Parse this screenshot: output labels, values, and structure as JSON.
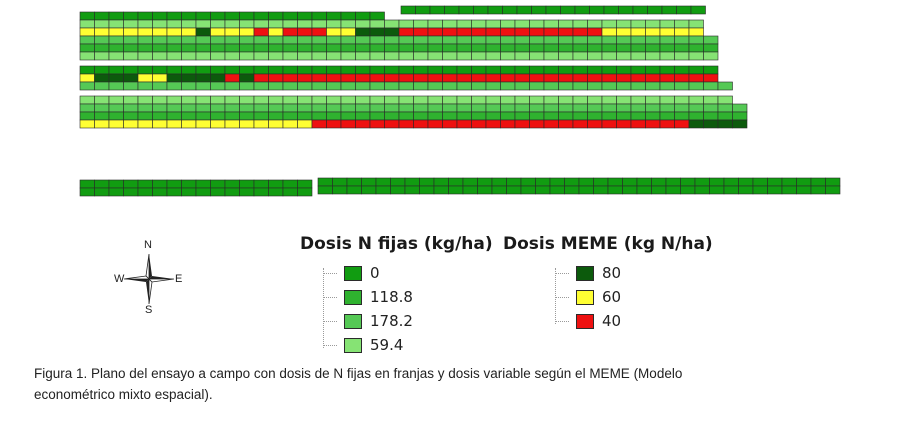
{
  "map": {
    "colors": {
      "n_0": "#119c11",
      "n_118_8": "#2fb22f",
      "n_178_2": "#55c955",
      "n_59_4": "#86e374",
      "meme_80": "#0c5a0c",
      "meme_60": "#ffff33",
      "meme_40": "#ee1111",
      "border": "#2a2a2a",
      "no_data": "#ffffff"
    }
  },
  "legend_fixed": {
    "title": "Dosis N fijas (kg/ha)",
    "items": [
      {
        "label": "0",
        "color": "#119c11"
      },
      {
        "label": "118.8",
        "color": "#2fb22f"
      },
      {
        "label": "178.2",
        "color": "#55c955"
      },
      {
        "label": "59.4",
        "color": "#86e374"
      }
    ]
  },
  "legend_meme": {
    "title": "Dosis MEME (kg N/ha)",
    "items": [
      {
        "label": "80",
        "color": "#0c5a0c"
      },
      {
        "label": "60",
        "color": "#ffff33"
      },
      {
        "label": "40",
        "color": "#ee1111"
      }
    ]
  },
  "compass": {
    "n": "N",
    "s": "S",
    "e": "E",
    "w": "W"
  },
  "caption": {
    "line1": "Figura 1. Plano del ensayo a campo con dosis de N fijas en franjas y dosis variable según el MEME (Modelo",
    "line2": "econométrico mixto espacial)."
  }
}
